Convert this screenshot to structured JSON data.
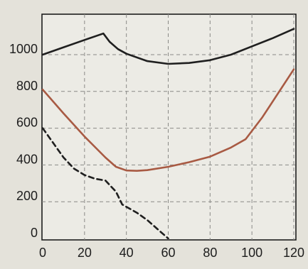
{
  "chart_data": {
    "type": "line",
    "title": "",
    "xlabel": "",
    "ylabel": "",
    "xlim": [
      0,
      120
    ],
    "ylim": [
      0,
      1100
    ],
    "x_ticks": [
      0,
      20,
      40,
      60,
      80,
      100,
      120
    ],
    "y_ticks": [
      0,
      200,
      400,
      600,
      800,
      1000
    ],
    "x_tick_labels": [
      "0",
      "20",
      "40",
      "60",
      "80",
      "100",
      "120"
    ],
    "y_tick_labels": [
      "0",
      "200",
      "400",
      "600",
      "800",
      "1000"
    ],
    "grid": true,
    "grid_style": "dashed",
    "background_color": "#e4e2da",
    "plot_background_color": "#ecebe5",
    "series": [
      {
        "style": "solid",
        "color": "#1f1f1f",
        "points": [
          [
            0,
            1000
          ],
          [
            10,
            1040
          ],
          [
            20,
            1080
          ],
          [
            29,
            1115
          ],
          [
            32,
            1070
          ],
          [
            36,
            1030
          ],
          [
            40,
            1005
          ],
          [
            50,
            965
          ],
          [
            60,
            950
          ],
          [
            70,
            955
          ],
          [
            80,
            970
          ],
          [
            90,
            1000
          ],
          [
            100,
            1045
          ],
          [
            110,
            1090
          ],
          [
            120,
            1140
          ]
        ]
      },
      {
        "style": "solid",
        "color": "#a85a43",
        "points": [
          [
            0,
            810
          ],
          [
            10,
            680
          ],
          [
            20,
            555
          ],
          [
            30,
            440
          ],
          [
            35,
            390
          ],
          [
            40,
            370
          ],
          [
            45,
            368
          ],
          [
            50,
            372
          ],
          [
            60,
            390
          ],
          [
            70,
            415
          ],
          [
            80,
            445
          ],
          [
            90,
            495
          ],
          [
            97,
            540
          ],
          [
            105,
            660
          ],
          [
            120,
            920
          ]
        ]
      },
      {
        "style": "dashed",
        "color": "#1f1f1f",
        "points": [
          [
            0,
            600
          ],
          [
            5,
            520
          ],
          [
            10,
            440
          ],
          [
            15,
            380
          ],
          [
            20,
            345
          ],
          [
            25,
            325
          ],
          [
            30,
            315
          ],
          [
            35,
            255
          ],
          [
            38,
            185
          ],
          [
            45,
            140
          ],
          [
            50,
            100
          ],
          [
            55,
            50
          ],
          [
            60,
            0
          ]
        ]
      }
    ]
  }
}
